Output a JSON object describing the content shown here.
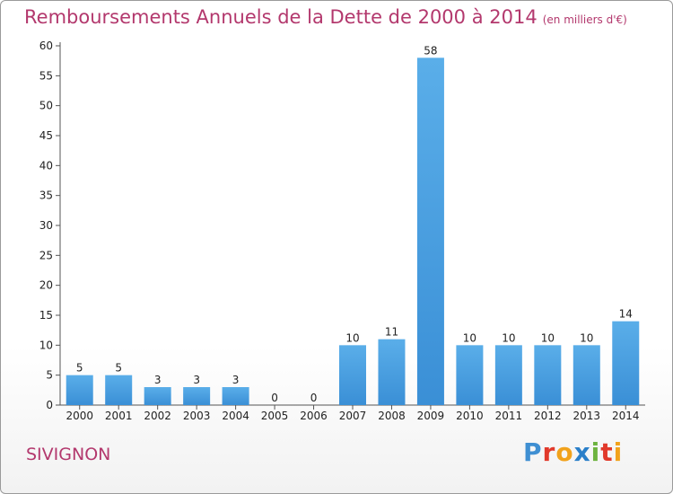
{
  "chart_data": {
    "type": "bar",
    "title": "Remboursements Annuels de la Dette de 2000 à 2014",
    "subtitle": "(en milliers d'€)",
    "categories": [
      "2000",
      "2001",
      "2002",
      "2003",
      "2004",
      "2005",
      "2006",
      "2007",
      "2008",
      "2009",
      "2010",
      "2011",
      "2012",
      "2013",
      "2014"
    ],
    "values": [
      5,
      5,
      3,
      3,
      3,
      0,
      0,
      10,
      11,
      58,
      10,
      10,
      10,
      10,
      14
    ],
    "value_labels": [
      "5",
      "5",
      "3",
      "3",
      "3",
      "0",
      "0",
      "10",
      "11",
      "58",
      "10",
      "10",
      "10",
      "10",
      "14"
    ],
    "yticks": [
      "0",
      "5",
      "10",
      "15",
      "20",
      "25",
      "30",
      "35",
      "40",
      "45",
      "50",
      "55",
      "60"
    ],
    "ylim": [
      0,
      60
    ],
    "grid": false,
    "bar_color": "#3a8fd6"
  },
  "footer": {
    "commune": "SIVIGNON",
    "logo_letters": [
      "P",
      "r",
      "o",
      "x",
      "i",
      "t",
      "i"
    ],
    "logo_colors": [
      "#3f8fd2",
      "#e1392b",
      "#f1a21c",
      "#2a7fc9",
      "#6db33f",
      "#e1392b",
      "#f1a21c"
    ]
  }
}
